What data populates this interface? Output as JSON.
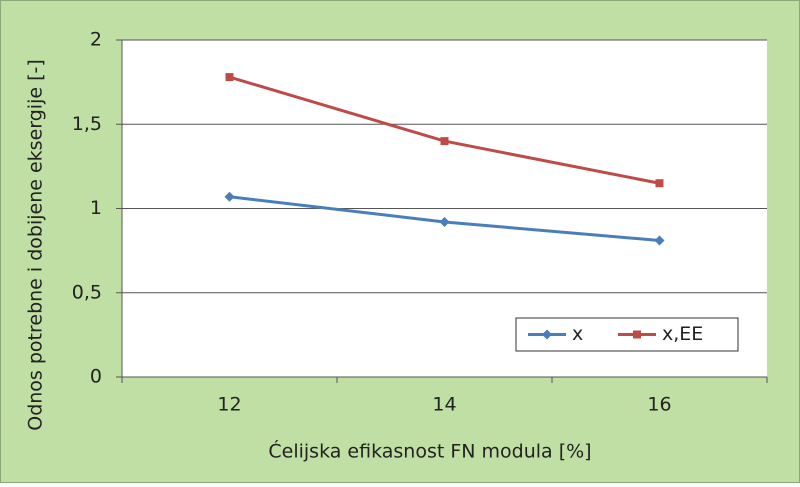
{
  "chart_data": {
    "type": "line",
    "x_label": "Ćelijska efikasnost FN modula [%]",
    "y_label": "Odnos potrebne i dobijene eksergije [-]",
    "categories": [
      "12",
      "14",
      "16"
    ],
    "series": [
      {
        "name": "x",
        "color": "#4a7ebb",
        "marker": "diamond",
        "values": [
          1.07,
          0.92,
          0.81
        ]
      },
      {
        "name": "x,EE",
        "color": "#be4b48",
        "marker": "square",
        "values": [
          1.78,
          1.4,
          1.15
        ]
      }
    ],
    "ylim": [
      0,
      2
    ],
    "yticks": [
      0,
      {
        "value": 0.5,
        "label": "0,5"
      },
      1,
      {
        "value": 1.5,
        "label": "1,5"
      },
      2
    ],
    "grid": true
  }
}
